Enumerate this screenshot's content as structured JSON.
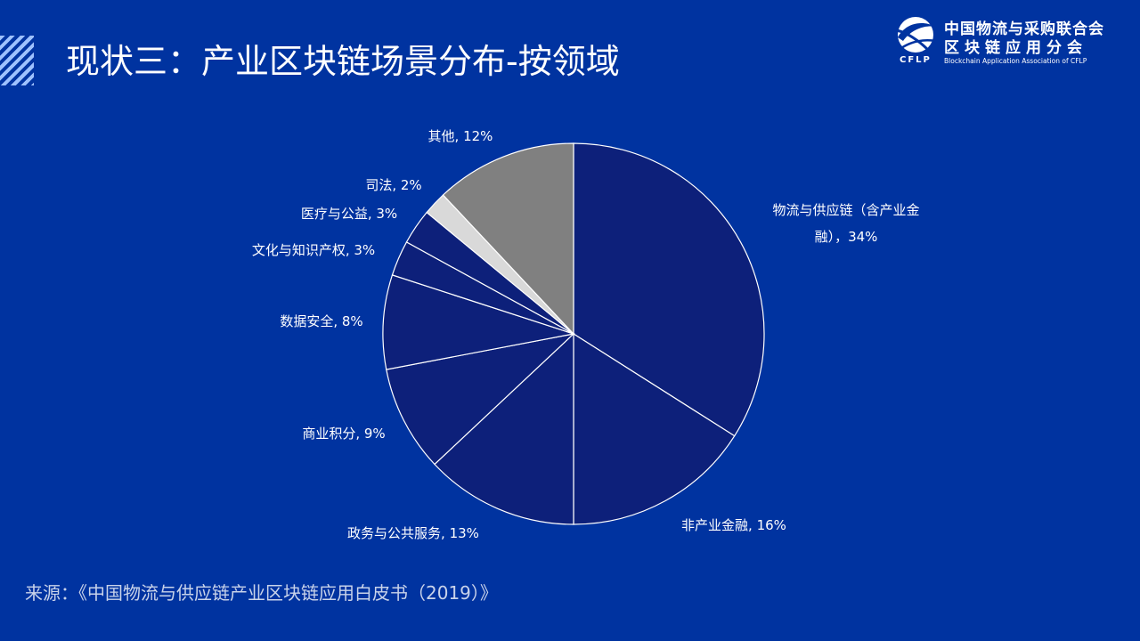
{
  "header": {
    "title": "现状三：产业区块链场景分布-按领域"
  },
  "logo": {
    "cn_line1": "中国物流与采购联合会",
    "cn_line2": "区块链应用分会",
    "abbr": "CFLP",
    "en": "Blockchain Application Association of CFLP"
  },
  "chart_data": {
    "type": "pie",
    "start_angle": "12 o'clock",
    "direction": "clockwise",
    "slices": [
      {
        "label": "物流与供应链（含产业金融）",
        "value": 34,
        "display": [
          "物流与供应链（含产业金",
          "融），34%"
        ],
        "color": "#0d207a"
      },
      {
        "label": "非产业金融",
        "value": 16,
        "display": [
          "非产业金融, 16%"
        ],
        "color": "#0d207a"
      },
      {
        "label": "政务与公共服务",
        "value": 13,
        "display": [
          "政务与公共服务, 13%"
        ],
        "color": "#0d207a"
      },
      {
        "label": "商业积分",
        "value": 9,
        "display": [
          "商业积分, 9%"
        ],
        "color": "#0d207a"
      },
      {
        "label": "数据安全",
        "value": 8,
        "display": [
          "数据安全, 8%"
        ],
        "color": "#0d207a"
      },
      {
        "label": "文化与知识产权",
        "value": 3,
        "display": [
          "文化与知识产权, 3%"
        ],
        "color": "#0d207a"
      },
      {
        "label": "医疗与公益",
        "value": 3,
        "display": [
          "医疗与公益, 3%"
        ],
        "color": "#0d207a"
      },
      {
        "label": "司法",
        "value": 2,
        "display": [
          "司法, 2%"
        ],
        "color": "#d9d9d9"
      },
      {
        "label": "其他",
        "value": 12,
        "display": [
          "其他, 12%"
        ],
        "color": "#808080"
      }
    ]
  },
  "footer": {
    "source": "来源：《中国物流与供应链产业区块链应用白皮书（2019）》"
  }
}
